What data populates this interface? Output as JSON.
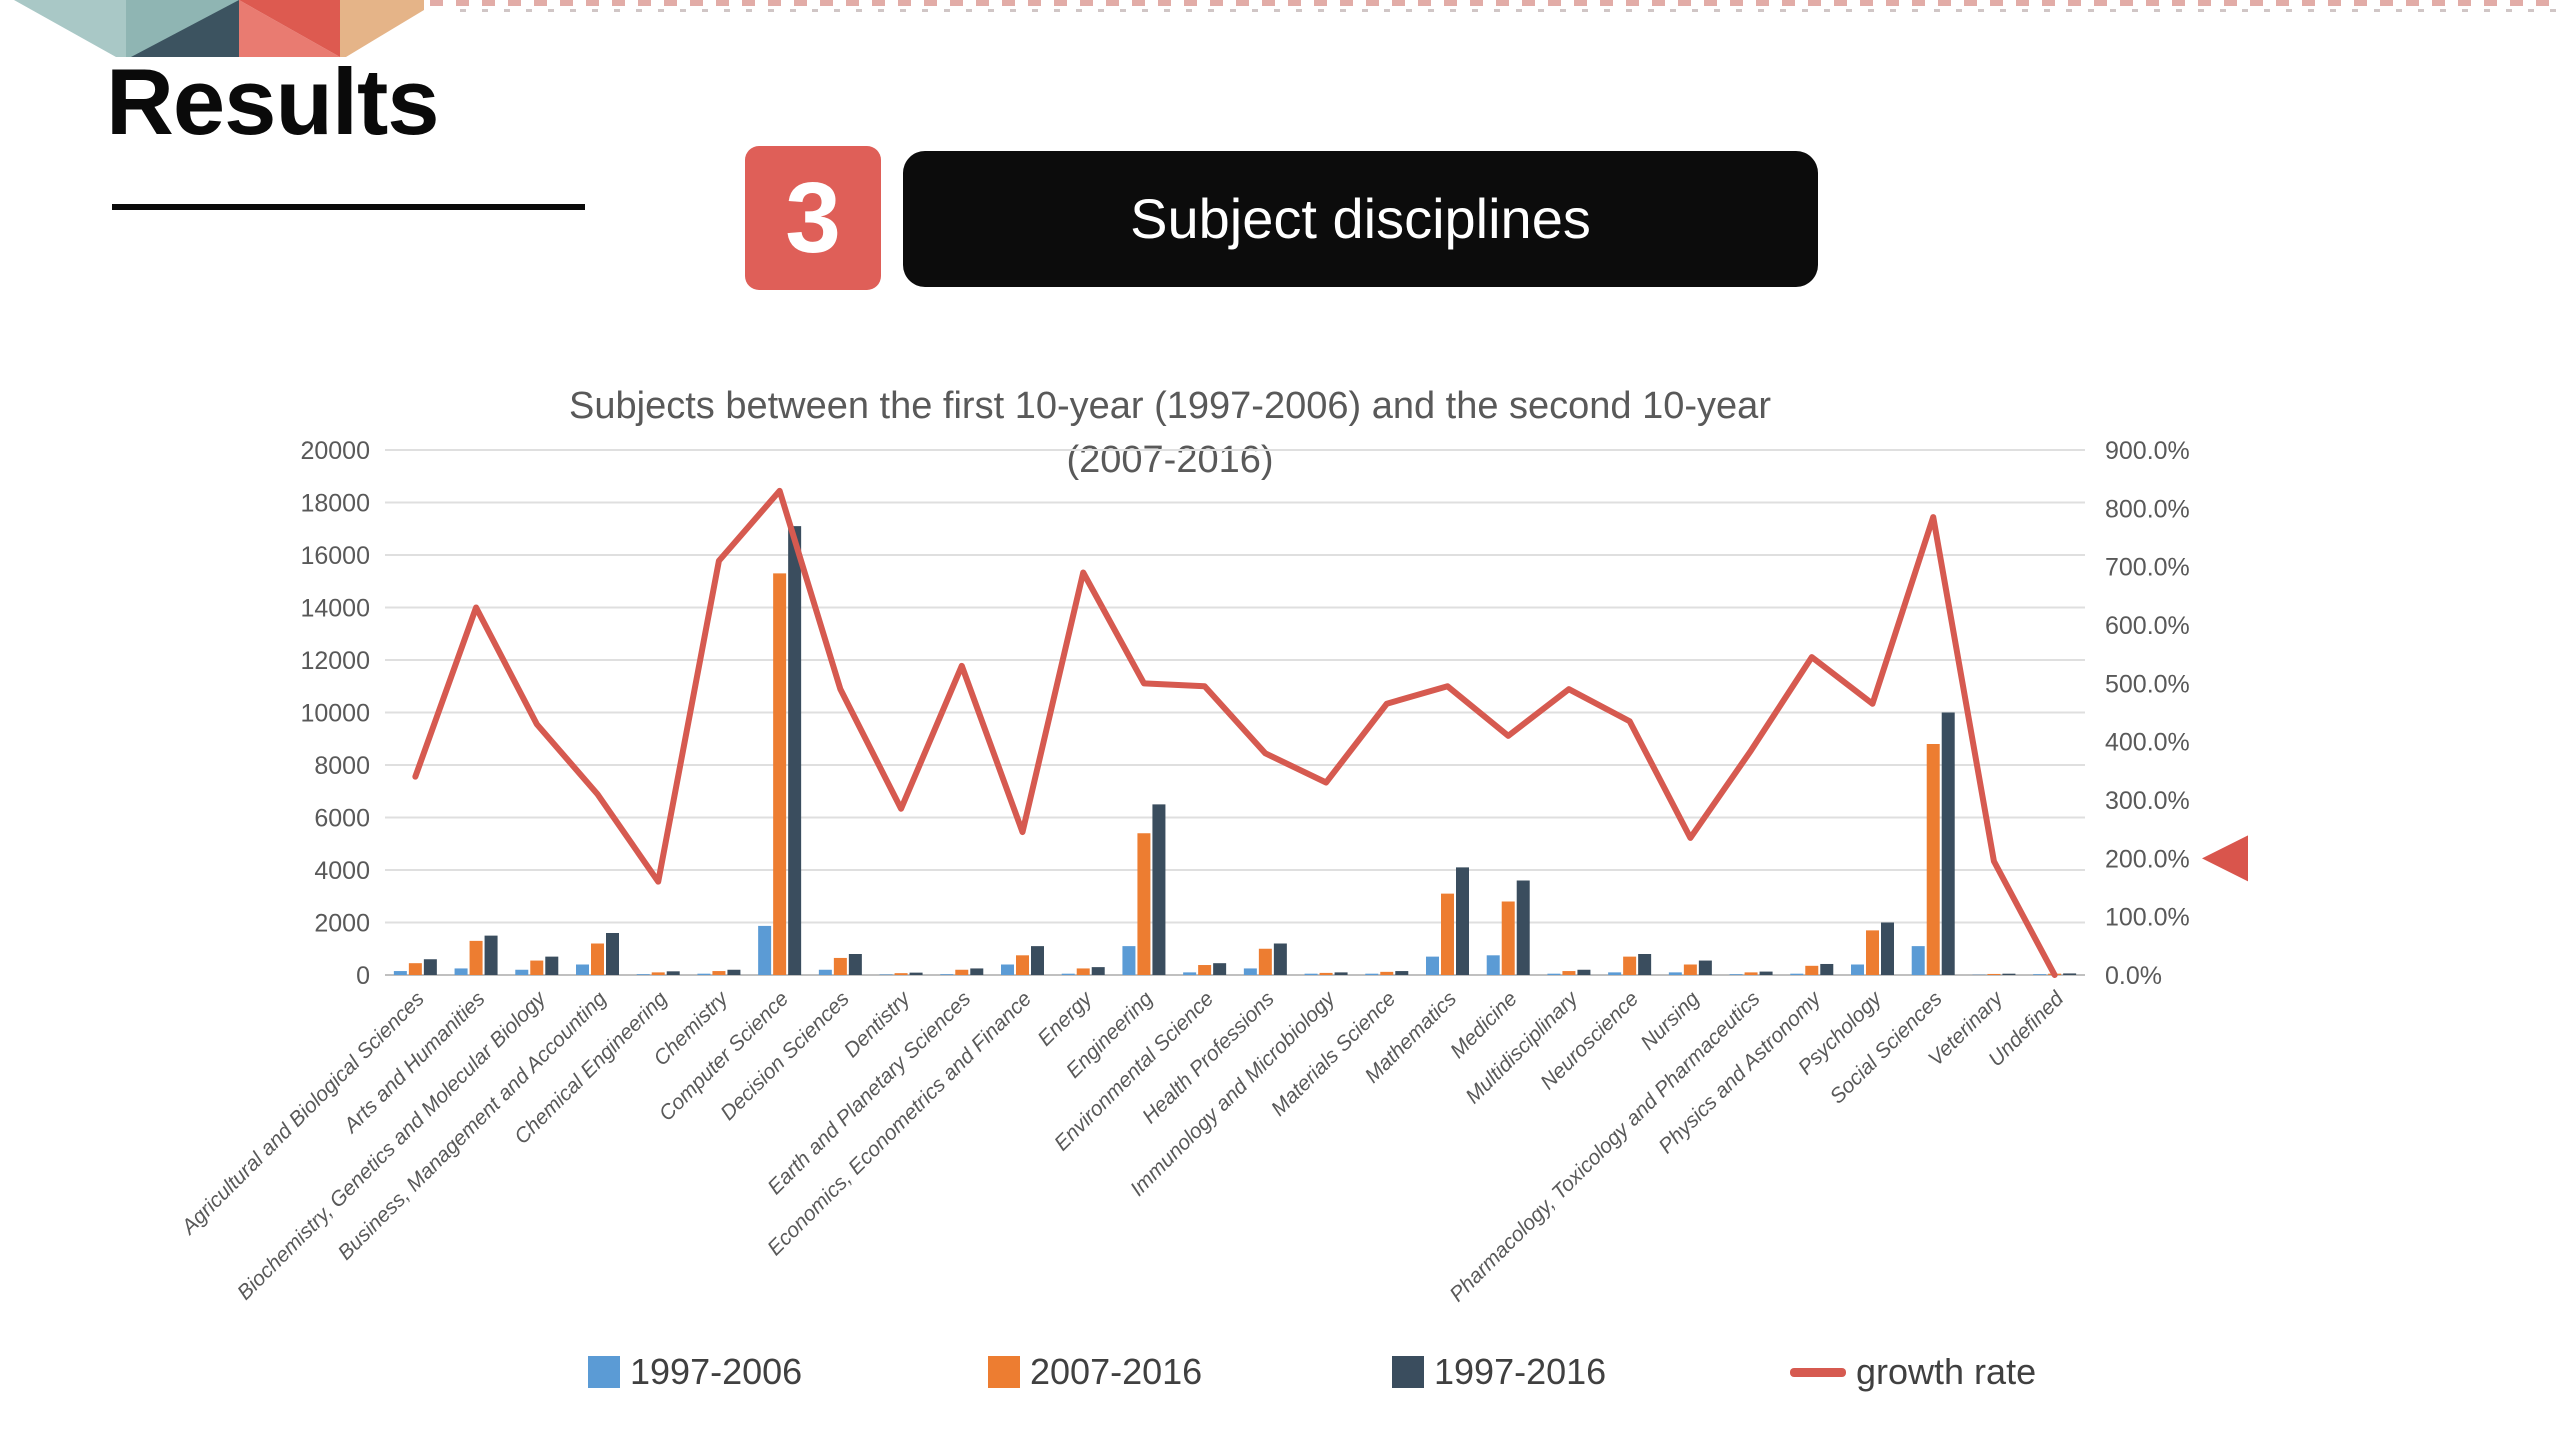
{
  "slide": {
    "results_title": "Results",
    "section_number": "3",
    "section_title": "Subject disciplines"
  },
  "colors": {
    "badge_red": "#df5f58",
    "badge_black": "#0c0c0c",
    "axis_text": "#595959",
    "grid": "#dfdfdf",
    "axis_line": "#c0c0c0",
    "legend_text": "#404040",
    "logo_teal_light": "#a9c8c6",
    "logo_teal": "#8fb5b3",
    "logo_slate": "#3c5360",
    "logo_red": "#dd5a50",
    "logo_red_light": "#e97b71",
    "logo_tan": "#e5b488"
  },
  "chart_data": {
    "type": "bar",
    "combo": "bar+line",
    "title_line1": "Subjects between the first 10-year (1997-2006) and the second 10-year",
    "title_line2": "(2007-2016)",
    "categories": [
      "Agricultural and Biological Sciences",
      "Arts and Humanities",
      "Biochemistry, Genetics and Molecular Biology",
      "Business, Management and Accounting",
      "Chemical Engineering",
      "Chemistry",
      "Computer Science",
      "Decision Sciences",
      "Dentistry",
      "Earth and Planetary Sciences",
      "Economics, Econometrics and Finance",
      "Energy",
      "Engineering",
      "Environmental Science",
      "Health Professions",
      "Immunology and Microbiology",
      "Materials Science",
      "Mathematics",
      "Medicine",
      "Multidisciplinary",
      "Neuroscience",
      "Nursing",
      "Pharmacology, Toxicology and Pharmaceutics",
      "Physics and Astronomy",
      "Psychology",
      "Social Sciences",
      "Veterinary",
      "Undefined"
    ],
    "series": [
      {
        "name": "1997-2006",
        "color": "#5b9bd5",
        "values": [
          150,
          250,
          200,
          400,
          30,
          50,
          1870,
          200,
          20,
          30,
          400,
          50,
          1100,
          100,
          250,
          50,
          50,
          700,
          750,
          50,
          100,
          100,
          30,
          50,
          400,
          1100,
          10,
          30
        ]
      },
      {
        "name": "2007-2016",
        "color": "#ed7d31",
        "values": [
          450,
          1300,
          550,
          1200,
          100,
          150,
          15300,
          650,
          70,
          200,
          750,
          250,
          5400,
          380,
          1000,
          80,
          120,
          3100,
          2800,
          150,
          700,
          400,
          100,
          350,
          1700,
          8800,
          40,
          50
        ]
      },
      {
        "name": "1997-2016",
        "color": "#3a4d5e",
        "values": [
          600,
          1500,
          700,
          1600,
          140,
          200,
          17100,
          800,
          90,
          250,
          1100,
          300,
          6500,
          450,
          1200,
          100,
          150,
          4100,
          3600,
          200,
          800,
          550,
          130,
          420,
          2000,
          10000,
          50,
          60
        ]
      }
    ],
    "line_series": {
      "name": "growth rate",
      "color": "#d65a50",
      "values_pct": [
        340,
        630,
        430,
        310,
        160,
        710,
        830,
        490,
        285,
        530,
        245,
        690,
        500,
        495,
        380,
        330,
        465,
        495,
        410,
        490,
        435,
        235,
        385,
        545,
        465,
        785,
        195,
        0
      ]
    },
    "left_axis": {
      "min": 0,
      "max": 20000,
      "step": 2000,
      "ticks": [
        "0",
        "2000",
        "4000",
        "6000",
        "8000",
        "10000",
        "12000",
        "14000",
        "16000",
        "18000",
        "20000"
      ]
    },
    "right_axis": {
      "min": 0,
      "max": 900,
      "step": 100,
      "ticks": [
        "0.0%",
        "100.0%",
        "200.0%",
        "300.0%",
        "400.0%",
        "500.0%",
        "600.0%",
        "700.0%",
        "800.0%",
        "900.0%"
      ]
    },
    "legend": [
      {
        "label": "1997-2006",
        "color": "#5b9bd5",
        "type": "square"
      },
      {
        "label": "2007-2016",
        "color": "#ed7d31",
        "type": "square"
      },
      {
        "label": "1997-2016",
        "color": "#3a4d5e",
        "type": "square"
      },
      {
        "label": "growth rate",
        "color": "#d65a50",
        "type": "line"
      }
    ],
    "annotation_arrow": {
      "points_to_pct": 200,
      "color": "#d9554c"
    },
    "grid": true,
    "legend_position": "bottom"
  }
}
